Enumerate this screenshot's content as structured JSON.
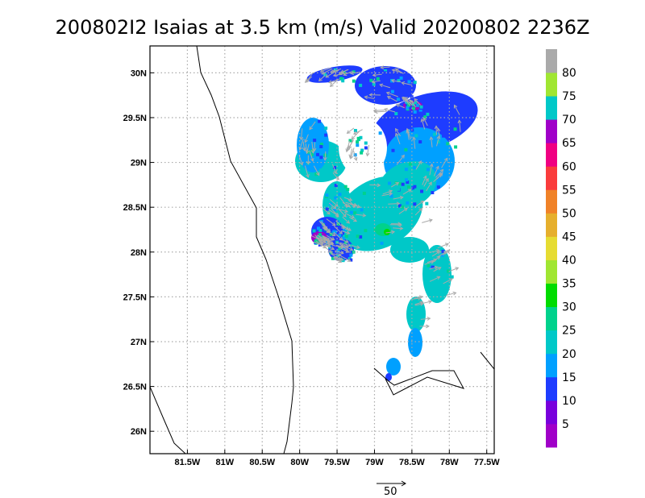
{
  "title": "200802I2 Isaias at 3.5 km (m/s) Valid 20200802 2236Z",
  "lon_labels": [
    "81.5W",
    "81W",
    "80.5W",
    "80W",
    "79.5W",
    "79W",
    "78.5W",
    "78W",
    "77.5W"
  ],
  "lat_labels": [
    "30N",
    "29.5N",
    "29N",
    "28.5N",
    "28N",
    "27.5N",
    "27N",
    "26.5N",
    "26N"
  ],
  "map_extent": {
    "lon_min": -82.0,
    "lon_max": -77.4,
    "lat_min": 25.75,
    "lat_max": 30.3
  },
  "colorbar": {
    "labels": [
      "5",
      "10",
      "15",
      "20",
      "25",
      "30",
      "35",
      "40",
      "45",
      "50",
      "55",
      "60",
      "65",
      "70",
      "75",
      "80"
    ],
    "colors": [
      "#a000c8",
      "#7800dc",
      "#1e3cff",
      "#00a0ff",
      "#00c8c8",
      "#00d28c",
      "#00dc00",
      "#a0e632",
      "#e6dc32",
      "#e6af2d",
      "#f08228",
      "#fa3c3c",
      "#f00082",
      "#a000c8",
      "#00c8c8",
      "#a0e632",
      "#aaaaaa"
    ]
  },
  "reference_vector": {
    "label": "50"
  },
  "colors": {
    "coast": "#000000",
    "grid": "#aaaaaa",
    "arrow": "#aaaaaa"
  }
}
